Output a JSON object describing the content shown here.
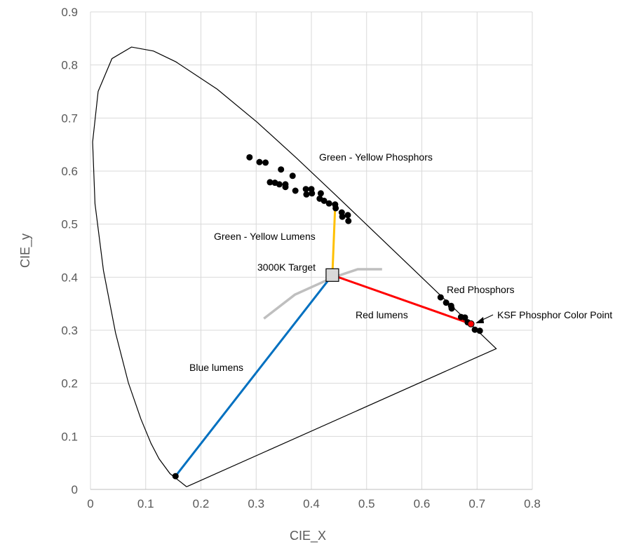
{
  "chart_data": {
    "type": "scatter",
    "title": "",
    "xlabel": "CIE_X",
    "ylabel": "CIE_y",
    "xlim": [
      0,
      0.8
    ],
    "ylim": [
      0,
      0.9
    ],
    "xticks": [
      "0",
      "0.1",
      "0.2",
      "0.3",
      "0.4",
      "0.5",
      "0.6",
      "0.7",
      "0.8"
    ],
    "yticks": [
      "0",
      "0.1",
      "0.2",
      "0.3",
      "0.4",
      "0.5",
      "0.6",
      "0.7",
      "0.8",
      "0.9"
    ],
    "grid": true,
    "spectral_locus": [
      [
        0.1741,
        0.005
      ],
      [
        0.144,
        0.0297
      ],
      [
        0.1241,
        0.0578
      ],
      [
        0.1096,
        0.0868
      ],
      [
        0.0913,
        0.1327
      ],
      [
        0.0687,
        0.2007
      ],
      [
        0.0454,
        0.295
      ],
      [
        0.0235,
        0.4127
      ],
      [
        0.0082,
        0.5384
      ],
      [
        0.0039,
        0.6548
      ],
      [
        0.0139,
        0.7502
      ],
      [
        0.0389,
        0.812
      ],
      [
        0.0743,
        0.8338
      ],
      [
        0.1142,
        0.8262
      ],
      [
        0.1547,
        0.8059
      ],
      [
        0.2296,
        0.7543
      ],
      [
        0.3016,
        0.6923
      ],
      [
        0.3731,
        0.6245
      ],
      [
        0.4441,
        0.5547
      ],
      [
        0.5125,
        0.4866
      ],
      [
        0.5752,
        0.4242
      ],
      [
        0.627,
        0.3725
      ],
      [
        0.6915,
        0.3083
      ],
      [
        0.7347,
        0.2653
      ],
      [
        0.1741,
        0.005
      ]
    ],
    "planckian_locus": [
      [
        0.314,
        0.322
      ],
      [
        0.37,
        0.367
      ],
      [
        0.438,
        0.399
      ],
      [
        0.484,
        0.415
      ],
      [
        0.528,
        0.415
      ]
    ],
    "series": [
      {
        "name": "Green - Yellow Phosphors",
        "color": "#000000",
        "points": [
          [
            0.288,
            0.626
          ],
          [
            0.306,
            0.617
          ],
          [
            0.317,
            0.616
          ],
          [
            0.345,
            0.603
          ],
          [
            0.366,
            0.591
          ],
          [
            0.325,
            0.579
          ],
          [
            0.334,
            0.578
          ],
          [
            0.342,
            0.575
          ],
          [
            0.353,
            0.575
          ],
          [
            0.353,
            0.57
          ],
          [
            0.371,
            0.563
          ],
          [
            0.39,
            0.566
          ],
          [
            0.391,
            0.556
          ],
          [
            0.4,
            0.566
          ],
          [
            0.401,
            0.558
          ],
          [
            0.417,
            0.558
          ],
          [
            0.415,
            0.548
          ],
          [
            0.423,
            0.544
          ],
          [
            0.432,
            0.539
          ],
          [
            0.443,
            0.537
          ],
          [
            0.444,
            0.53
          ],
          [
            0.455,
            0.522
          ],
          [
            0.456,
            0.514
          ],
          [
            0.466,
            0.517
          ],
          [
            0.467,
            0.506
          ]
        ]
      },
      {
        "name": "Red Phosphors",
        "color": "#000000",
        "points": [
          [
            0.634,
            0.362
          ],
          [
            0.644,
            0.352
          ],
          [
            0.653,
            0.346
          ],
          [
            0.654,
            0.341
          ],
          [
            0.671,
            0.325
          ],
          [
            0.678,
            0.324
          ],
          [
            0.683,
            0.315
          ],
          [
            0.696,
            0.301
          ],
          [
            0.705,
            0.299
          ]
        ]
      },
      {
        "name": "Blue",
        "color": "#000000",
        "points": [
          [
            0.154,
            0.025
          ]
        ]
      },
      {
        "name": "KSF Phosphor Color Point",
        "color": "#ff0000",
        "points": [
          [
            0.689,
            0.312
          ]
        ]
      }
    ],
    "lines": [
      {
        "name": "Blue lumens",
        "color": "#0070c0",
        "from": [
          0.154,
          0.025
        ],
        "to": [
          0.438,
          0.404
        ]
      },
      {
        "name": "Red lumens",
        "color": "#ff0000",
        "from": [
          0.438,
          0.404
        ],
        "to": [
          0.689,
          0.312
        ]
      },
      {
        "name": "Green - Yellow Lumens",
        "color": "#ffc000",
        "from": [
          0.438,
          0.404
        ],
        "to": [
          0.443,
          0.533
        ]
      }
    ],
    "target": {
      "name": "3000K Target",
      "point": [
        0.438,
        0.404
      ]
    },
    "annotations": [
      "Green - Yellow Phosphors",
      "Green - Yellow Lumens",
      "3000K Target",
      "Red lumens",
      "Red Phosphors",
      "KSF Phosphor Color Point",
      "Blue lumens"
    ]
  }
}
